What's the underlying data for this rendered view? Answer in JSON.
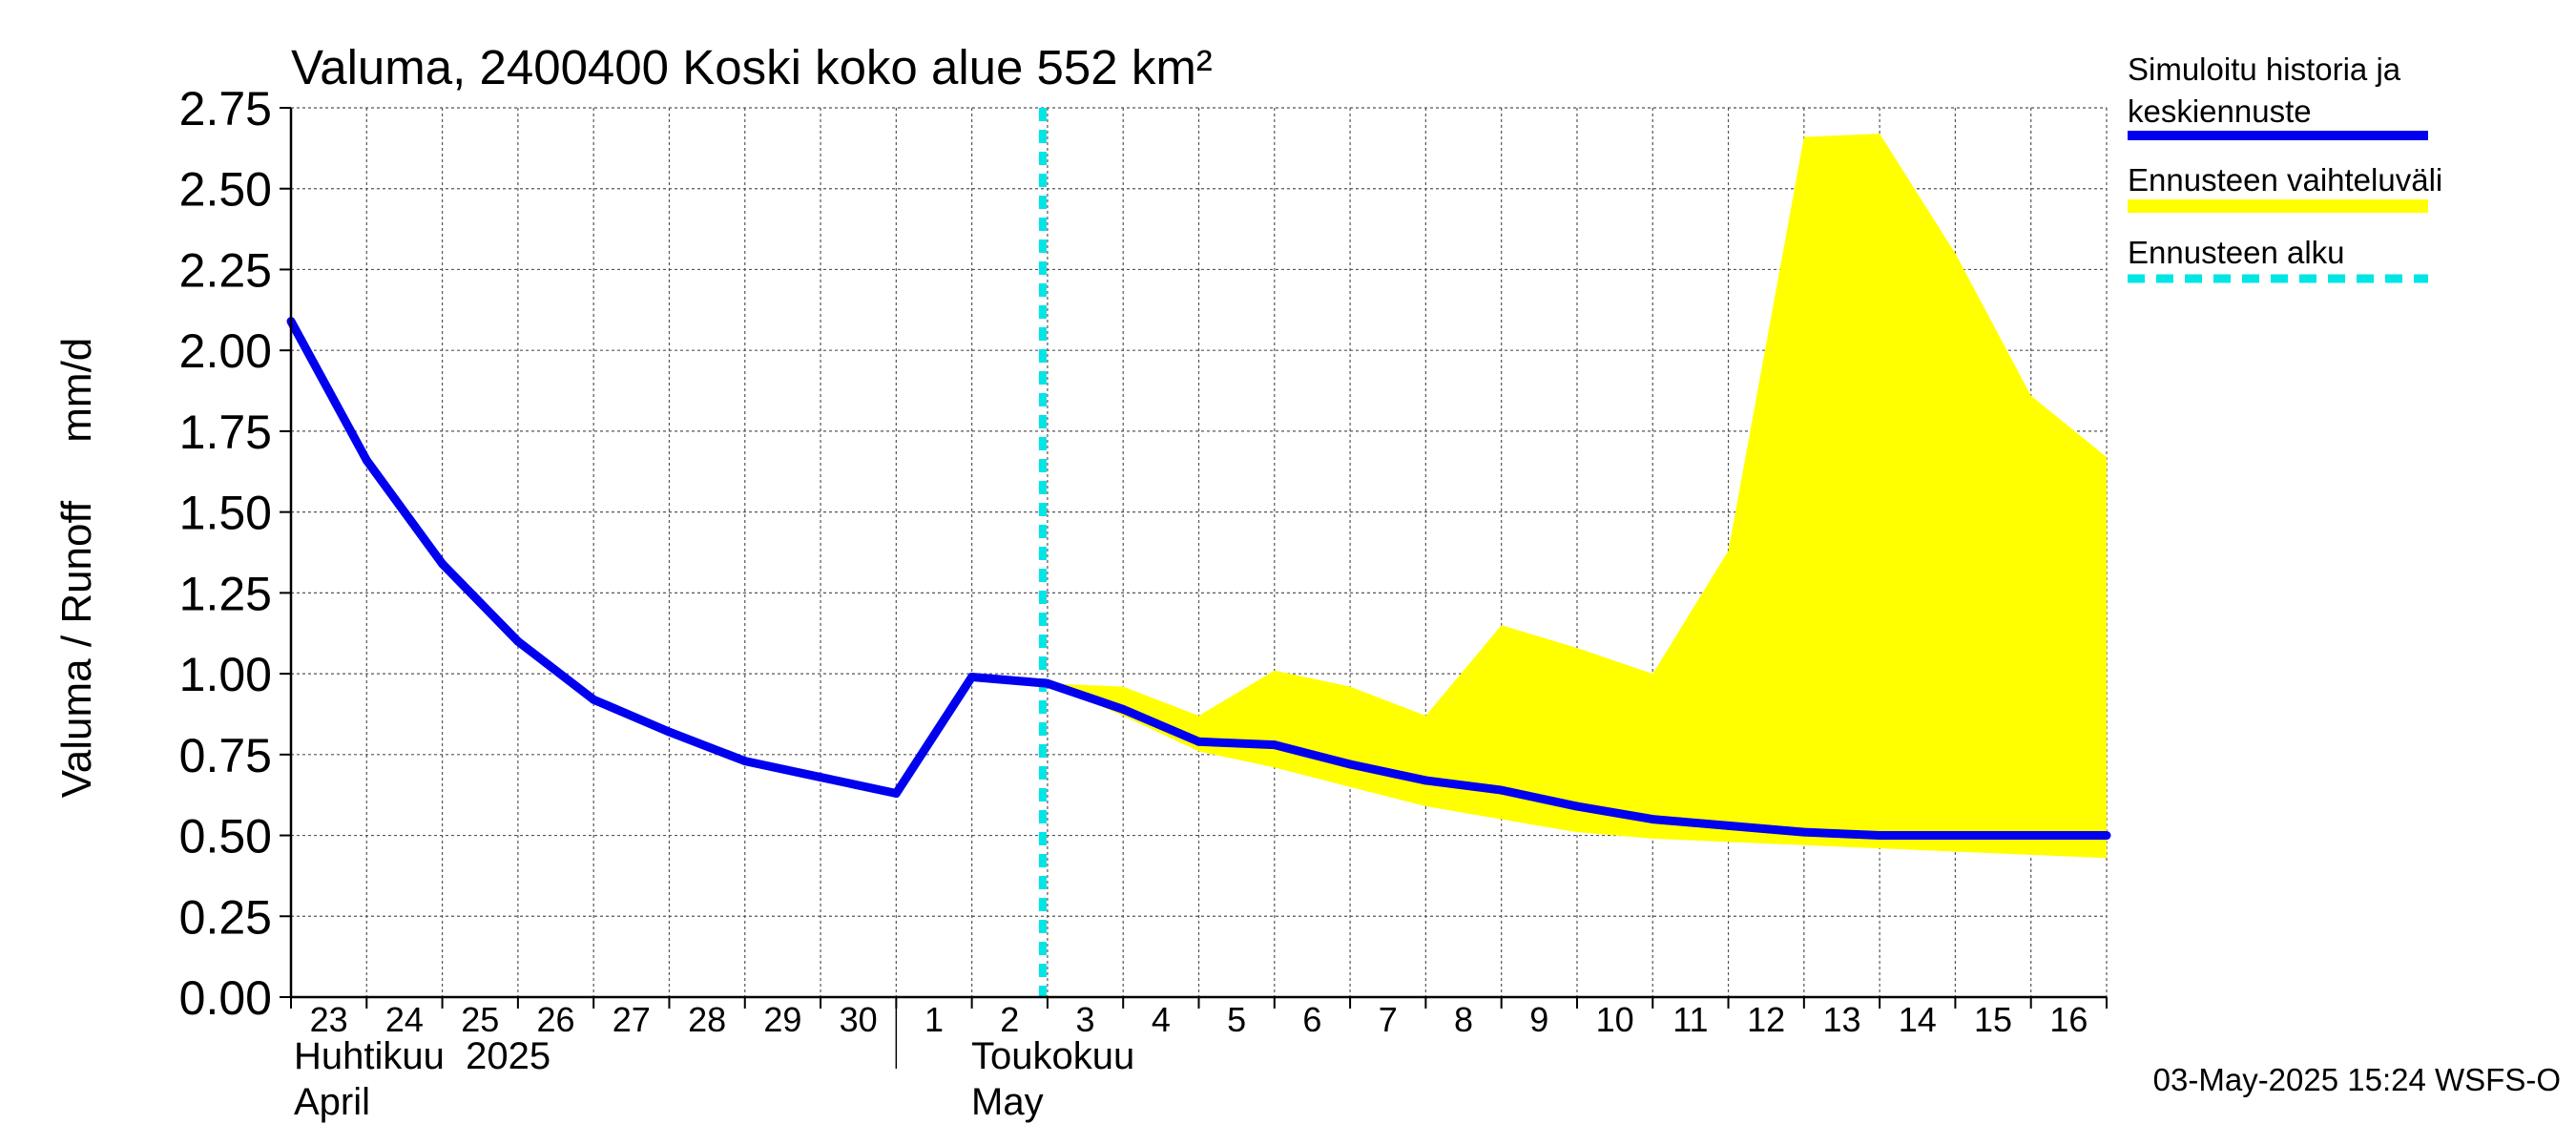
{
  "chart_data": {
    "type": "line",
    "title": "Valuma, 2400400 Koski koko alue 552 km²",
    "ylabel": "Valuma / Runoff     mm/d",
    "ylim": [
      0,
      2.75
    ],
    "yticks": [
      "0.00",
      "0.25",
      "0.50",
      "0.75",
      "1.00",
      "1.25",
      "1.50",
      "1.75",
      "2.00",
      "2.25",
      "2.50",
      "2.75"
    ],
    "x_day_labels": [
      "23",
      "24",
      "25",
      "26",
      "27",
      "28",
      "29",
      "30",
      "1",
      "2",
      "3",
      "4",
      "5",
      "6",
      "7",
      "8",
      "9",
      "10",
      "11",
      "12",
      "13",
      "14",
      "15",
      "16"
    ],
    "x_dates": [
      "2025-04-23",
      "2025-04-24",
      "2025-04-25",
      "2025-04-26",
      "2025-04-27",
      "2025-04-28",
      "2025-04-29",
      "2025-04-30",
      "2025-05-01",
      "2025-05-02",
      "2025-05-03",
      "2025-05-04",
      "2025-05-05",
      "2025-05-06",
      "2025-05-07",
      "2025-05-08",
      "2025-05-09",
      "2025-05-10",
      "2025-05-11",
      "2025-05-12",
      "2025-05-13",
      "2025-05-14",
      "2025-05-15",
      "2025-05-16",
      "2025-05-17"
    ],
    "month_labels": [
      {
        "line1": "Huhtikuu  2025",
        "line2": "April"
      },
      {
        "line1": "Toukokuu",
        "line2": "May"
      }
    ],
    "grid": true,
    "legend_position": "right",
    "forecast_start": "2025-05-03",
    "series": [
      {
        "name": "Simuloitu historia ja keskiennuste",
        "color": "#0000ee",
        "values": [
          2.09,
          1.66,
          1.34,
          1.1,
          0.92,
          0.82,
          0.73,
          0.68,
          0.63,
          0.99,
          0.97,
          0.89,
          0.79,
          0.78,
          0.72,
          0.67,
          0.64,
          0.59,
          0.55,
          0.53,
          0.51,
          0.5,
          0.5,
          0.5,
          0.5
        ]
      }
    ],
    "band": {
      "name": "Ennusteen vaihteluväli",
      "color": "#ffff00",
      "start_index": 10,
      "upper": [
        0.97,
        0.96,
        0.87,
        1.01,
        0.96,
        0.87,
        1.15,
        1.08,
        1.0,
        1.38,
        2.66,
        2.67,
        2.3,
        1.86,
        1.67
      ],
      "lower": [
        0.97,
        0.87,
        0.76,
        0.71,
        0.65,
        0.59,
        0.55,
        0.51,
        0.49,
        0.48,
        0.47,
        0.46,
        0.45,
        0.44,
        0.43
      ]
    },
    "forecast_line": {
      "name": "Ennusteen alku",
      "color": "#00e5e5"
    }
  },
  "legend": [
    {
      "lines": [
        "Simuloitu historia ja",
        "keskiennuste"
      ],
      "color": "#0000ee",
      "style": "solid"
    },
    {
      "lines": [
        "Ennusteen vaihteluväli"
      ],
      "color": "#ffff00",
      "style": "band"
    },
    {
      "lines": [
        "Ennusteen alku"
      ],
      "color": "#00e5e5",
      "style": "dashed"
    }
  ],
  "footer": "03-May-2025 15:24 WSFS-O"
}
